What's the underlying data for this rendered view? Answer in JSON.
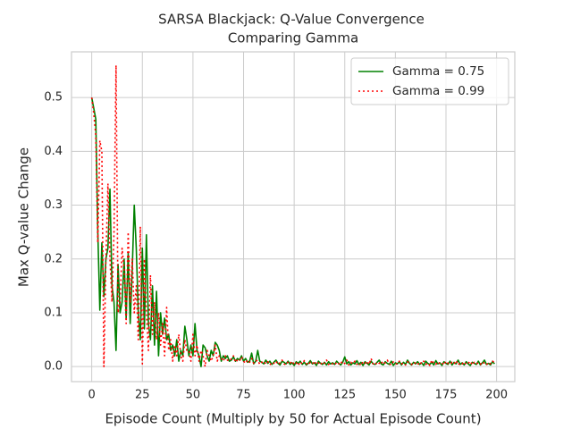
{
  "chart_data": {
    "type": "line",
    "title": "SARSA Blackjack: Q-Value Convergence",
    "subtitle": "Comparing Gamma",
    "x_label": "Episode Count (Multiply by 50 for Actual Episode Count)",
    "y_label": "Max Q-value Change",
    "grid": true,
    "legend": "upper right",
    "xlim": [
      -10,
      209
    ],
    "ylim": [
      -0.028,
      0.585
    ],
    "xticks": [
      0,
      25,
      50,
      75,
      100,
      125,
      150,
      175,
      200
    ],
    "yticks": [
      {
        "value": 0,
        "label": "0.0"
      },
      0.1,
      0.2,
      0.3,
      0.4,
      0.5
    ],
    "x": [
      0,
      1,
      2,
      3,
      4,
      5,
      6,
      7,
      8,
      9,
      10,
      11,
      12,
      13,
      14,
      15,
      16,
      17,
      18,
      19,
      20,
      21,
      22,
      23,
      24,
      25,
      26,
      27,
      28,
      29,
      30,
      31,
      32,
      33,
      34,
      35,
      36,
      37,
      38,
      39,
      40,
      41,
      42,
      43,
      44,
      45,
      46,
      47,
      48,
      49,
      50,
      51,
      52,
      53,
      54,
      55,
      56,
      57,
      58,
      59,
      60,
      61,
      62,
      63,
      64,
      65,
      66,
      67,
      68,
      69,
      70,
      71,
      72,
      73,
      74,
      75,
      76,
      77,
      78,
      79,
      80,
      81,
      82,
      83,
      84,
      85,
      86,
      87,
      88,
      89,
      90,
      91,
      92,
      93,
      94,
      95,
      96,
      97,
      98,
      99,
      100,
      101,
      102,
      103,
      104,
      105,
      106,
      107,
      108,
      109,
      110,
      111,
      112,
      113,
      114,
      115,
      116,
      117,
      118,
      119,
      120,
      121,
      122,
      123,
      124,
      125,
      126,
      127,
      128,
      129,
      130,
      131,
      132,
      133,
      134,
      135,
      136,
      137,
      138,
      139,
      140,
      141,
      142,
      143,
      144,
      145,
      146,
      147,
      148,
      149,
      150,
      151,
      152,
      153,
      154,
      155,
      156,
      157,
      158,
      159,
      160,
      161,
      162,
      163,
      164,
      165,
      166,
      167,
      168,
      169,
      170,
      171,
      172,
      173,
      174,
      175,
      176,
      177,
      178,
      179,
      180,
      181,
      182,
      183,
      184,
      185,
      186,
      187,
      188,
      189,
      190,
      191,
      192,
      193,
      194,
      195,
      196,
      197,
      198,
      199
    ],
    "series": [
      {
        "name": "Gamma = 0.75",
        "color": "#008000",
        "dash": "solid",
        "values": [
          0.5,
          0.48,
          0.46,
          0.25,
          0.105,
          0.23,
          0.13,
          0.2,
          0.22,
          0.33,
          0.15,
          0.12,
          0.03,
          0.19,
          0.1,
          0.12,
          0.2,
          0.09,
          0.21,
          0.08,
          0.18,
          0.3,
          0.22,
          0.1,
          0.05,
          0.22,
          0.07,
          0.245,
          0.08,
          0.05,
          0.15,
          0.04,
          0.14,
          0.02,
          0.1,
          0.06,
          0.09,
          0.05,
          0.06,
          0.03,
          0.04,
          0.02,
          0.05,
          0.01,
          0.03,
          0.02,
          0.075,
          0.05,
          0.02,
          0.04,
          0.02,
          0.08,
          0.03,
          0.02,
          0.0,
          0.04,
          0.035,
          0.02,
          0.01,
          0.03,
          0.02,
          0.045,
          0.04,
          0.03,
          0.01,
          0.02,
          0.015,
          0.02,
          0.01,
          0.012,
          0.018,
          0.01,
          0.015,
          0.012,
          0.02,
          0.01,
          0.015,
          0.008,
          0.01,
          0.025,
          0.005,
          0.01,
          0.03,
          0.01,
          0.008,
          0.005,
          0.012,
          0.006,
          0.01,
          0.004,
          0.008,
          0.012,
          0.006,
          0.003,
          0.01,
          0.008,
          0.005,
          0.01,
          0.004,
          0.007,
          0.002,
          0.009,
          0.006,
          0.01,
          0.004,
          0.008,
          0.003,
          0.006,
          0.011,
          0.005,
          0.007,
          0.002,
          0.01,
          0.006,
          0.004,
          0.008,
          0.003,
          0.009,
          0.005,
          0.007,
          0.004,
          0.01,
          0.006,
          0.003,
          0.008,
          0.018,
          0.005,
          0.009,
          0.003,
          0.007,
          0.005,
          0.011,
          0.004,
          0.008,
          0.002,
          0.009,
          0.006,
          0.003,
          0.01,
          0.005,
          0.004,
          0.008,
          0.012,
          0.005,
          0.003,
          0.009,
          0.006,
          0.004,
          0.01,
          0.002,
          0.007,
          0.005,
          0.009,
          0.003,
          0.008,
          0.004,
          0.012,
          0.006,
          0.003,
          0.008,
          0.005,
          0.009,
          0.004,
          0.007,
          0.002,
          0.01,
          0.006,
          0.004,
          0.008,
          0.003,
          0.011,
          0.005,
          0.007,
          0.002,
          0.009,
          0.006,
          0.004,
          0.01,
          0.003,
          0.008,
          0.005,
          0.012,
          0.004,
          0.007,
          0.003,
          0.009,
          0.005,
          0.002,
          0.008,
          0.006,
          0.004,
          0.01,
          0.003,
          0.007,
          0.012,
          0.004,
          0.006,
          0.003,
          0.009,
          0.005
        ]
      },
      {
        "name": "Gamma = 0.99",
        "color": "#ff0000",
        "dash": "dotted",
        "values": [
          0.5,
          0.47,
          0.43,
          0.23,
          0.42,
          0.4,
          0.0,
          0.2,
          0.34,
          0.2,
          0.12,
          0.25,
          0.56,
          0.1,
          0.12,
          0.22,
          0.18,
          0.08,
          0.25,
          0.12,
          0.2,
          0.1,
          0.15,
          0.05,
          0.26,
          0.005,
          0.2,
          0.1,
          0.03,
          0.17,
          0.06,
          0.12,
          0.05,
          0.1,
          0.04,
          0.08,
          0.02,
          0.11,
          0.03,
          0.05,
          0.01,
          0.04,
          0.02,
          0.06,
          0.02,
          0.01,
          0.05,
          0.03,
          0.03,
          0.01,
          0.06,
          0.02,
          0.04,
          0.01,
          0.03,
          0.02,
          0.0,
          0.03,
          0.02,
          0.01,
          0.02,
          0.04,
          0.01,
          0.02,
          0.015,
          0.01,
          0.02,
          0.012,
          0.01,
          0.015,
          0.02,
          0.008,
          0.012,
          0.01,
          0.018,
          0.01,
          0.006,
          0.012,
          0.008,
          0.015,
          0.006,
          0.01,
          0.012,
          0.004,
          0.008,
          0.01,
          0.005,
          0.009,
          0.003,
          0.008,
          0.006,
          0.01,
          0.004,
          0.007,
          0.012,
          0.005,
          0.003,
          0.009,
          0.006,
          0.01,
          0.004,
          0.007,
          0.002,
          0.009,
          0.005,
          0.011,
          0.006,
          0.003,
          0.008,
          0.005,
          0.01,
          0.004,
          0.007,
          0.003,
          0.009,
          0.006,
          0.012,
          0.004,
          0.007,
          0.005,
          0.003,
          0.008,
          0.005,
          0.01,
          0.004,
          0.006,
          0.012,
          0.003,
          0.008,
          0.005,
          0.01,
          0.004,
          0.007,
          0.002,
          0.009,
          0.006,
          0.01,
          0.004,
          0.015,
          0.005,
          0.008,
          0.003,
          0.006,
          0.01,
          0.004,
          0.007,
          0.012,
          0.005,
          0.003,
          0.009,
          0.006,
          0.004,
          0.01,
          0.005,
          0.007,
          0.003,
          0.009,
          0.006,
          0.004,
          0.008,
          0.006,
          0.003,
          0.009,
          0.005,
          0.01,
          0.004,
          0.007,
          0.002,
          0.012,
          0.006,
          0.004,
          0.009,
          0.005,
          0.007,
          0.003,
          0.01,
          0.006,
          0.004,
          0.008,
          0.005,
          0.011,
          0.003,
          0.007,
          0.005,
          0.009,
          0.004,
          0.006,
          0.01,
          0.003,
          0.008,
          0.005,
          0.007,
          0.004,
          0.009,
          0.006,
          0.003,
          0.008,
          0.005,
          0.01,
          0.007
        ]
      }
    ]
  }
}
